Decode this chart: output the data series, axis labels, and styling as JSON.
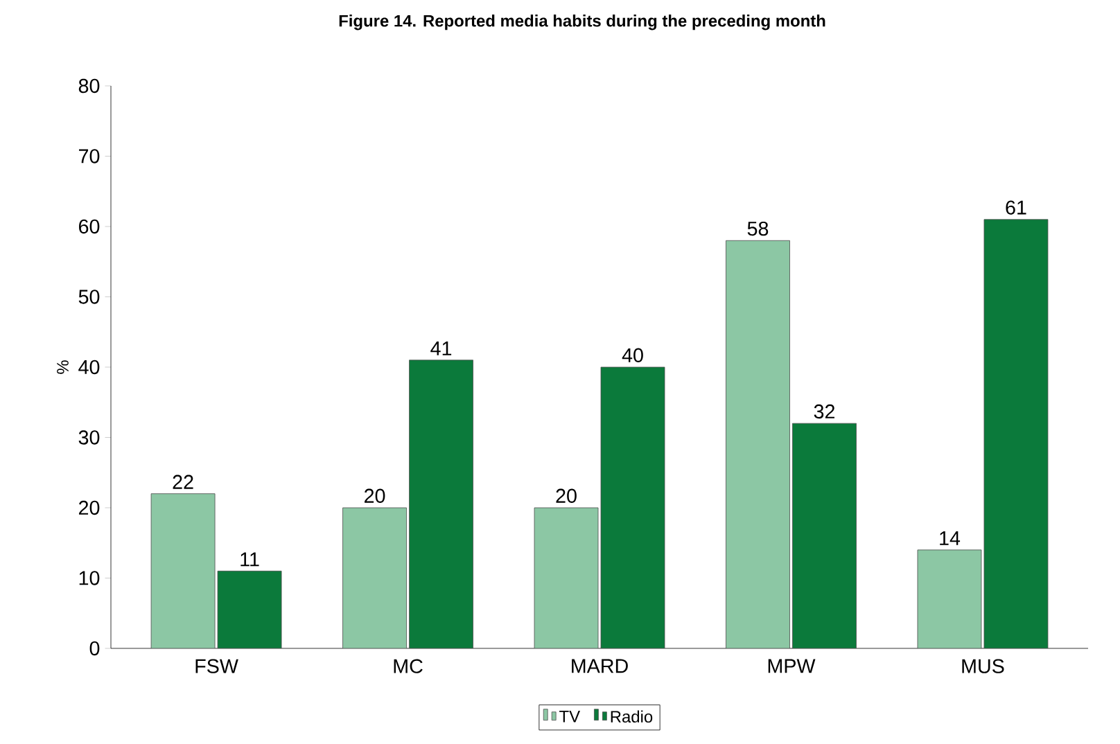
{
  "chart_data": {
    "type": "bar",
    "title": "Figure 14.  Reported media habits during the preceding month",
    "ylabel": "%",
    "categories": [
      "FSW",
      "MC",
      "MARD",
      "MPW",
      "MUS"
    ],
    "series": [
      {
        "name": "TV",
        "color": "#8cc7a4",
        "values": [
          22,
          20,
          20,
          58,
          14
        ]
      },
      {
        "name": "Radio",
        "color": "#0b7a3b",
        "values": [
          11,
          41,
          40,
          32,
          61
        ]
      }
    ],
    "ylim": [
      0,
      80
    ],
    "yticks": [
      0,
      10,
      20,
      30,
      40,
      50,
      60,
      70,
      80
    ],
    "data_labels": true,
    "grid": false,
    "legend": "bottom"
  }
}
